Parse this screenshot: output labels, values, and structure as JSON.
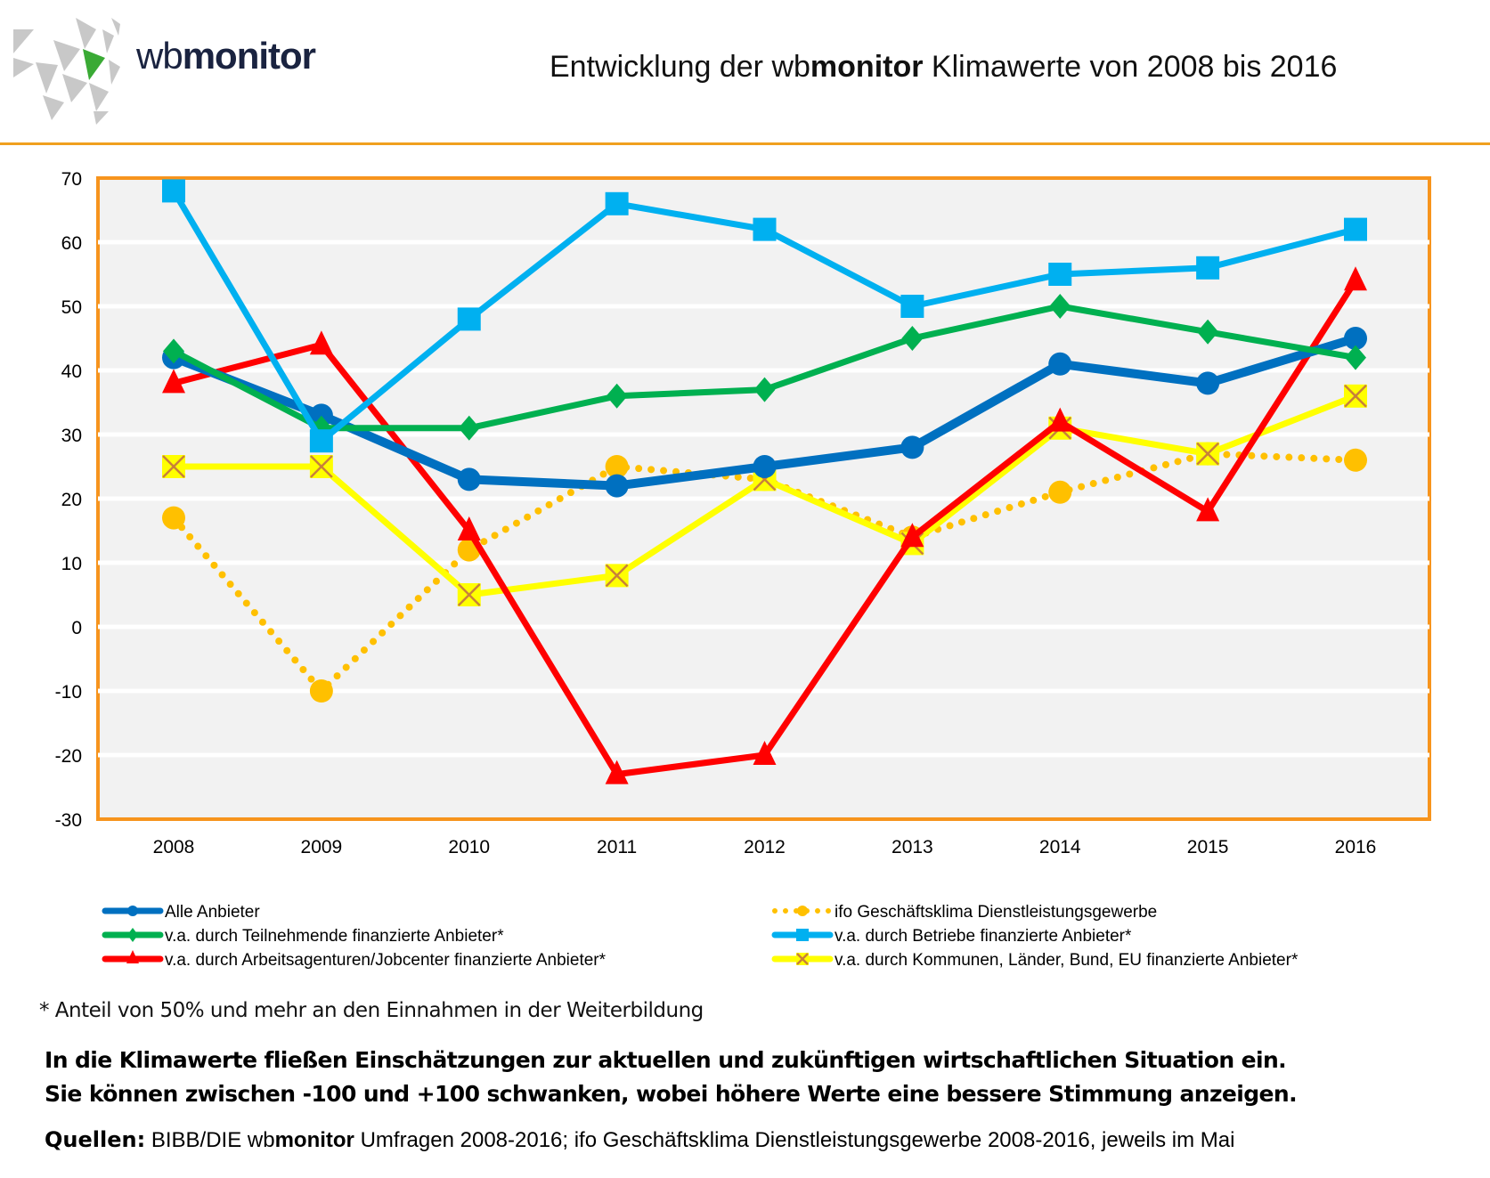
{
  "header": {
    "logo_light": "wb",
    "logo_bold": "monitor",
    "title_pre": "Entwicklung der wb",
    "title_bold": "monitor",
    "title_post": " Klimawerte von 2008 bis 2016"
  },
  "colors": {
    "accent_orange": "#f7941d",
    "rule": "#f0a01e",
    "plot_bg": "#f2f2f2",
    "grid": "#ffffff",
    "logo_green": "#3aaa35",
    "logo_gray": "#c8c8c8"
  },
  "chart_data": {
    "type": "line",
    "title": "Entwicklung der wbmonitor Klimawerte von 2008 bis 2016",
    "xlabel": "",
    "ylabel": "",
    "x": [
      "2008",
      "2009",
      "2010",
      "2011",
      "2012",
      "2013",
      "2014",
      "2015",
      "2016"
    ],
    "ylim": [
      -30,
      70
    ],
    "yticks": [
      70,
      60,
      50,
      40,
      30,
      20,
      10,
      0,
      -10,
      -20,
      -30
    ],
    "grid": true,
    "legend_position": "bottom",
    "series": [
      {
        "name": "Alle Anbieter",
        "color": "#0070c0",
        "marker": "circle",
        "style": "solid",
        "width": "thick",
        "values": [
          42,
          33,
          23,
          22,
          25,
          28,
          41,
          38,
          45
        ]
      },
      {
        "name": "v.a.  durch Teilnehmende finanzierte Anbieter*",
        "color": "#00b050",
        "marker": "diamond",
        "style": "solid",
        "width": "medium",
        "values": [
          43,
          31,
          31,
          36,
          37,
          45,
          50,
          46,
          42
        ]
      },
      {
        "name": "v.a. durch Arbeitsagenturen/Jobcenter finanzierte Anbieter*",
        "color": "#ff0000",
        "marker": "triangle",
        "style": "solid",
        "width": "medium",
        "values": [
          38,
          44,
          15,
          -23,
          -20,
          14,
          32,
          18,
          54
        ]
      },
      {
        "name": "ifo Geschäftsklima Dienstleistungsgewerbe",
        "color": "#ffc000",
        "marker": "circle",
        "style": "dotted",
        "width": "medium",
        "values": [
          17,
          -10,
          12,
          25,
          23,
          14,
          21,
          27,
          26
        ]
      },
      {
        "name": "v.a. durch Betriebe finanzierte Anbieter*",
        "color": "#00b0f0",
        "marker": "square",
        "style": "solid",
        "width": "medium",
        "values": [
          68,
          29,
          48,
          66,
          62,
          50,
          55,
          56,
          62
        ]
      },
      {
        "name": "v.a. durch Kommunen, Länder, Bund, EU finanzierte Anbieter*",
        "color": "#ffff00",
        "marker": "x-square",
        "style": "solid",
        "width": "medium",
        "values": [
          25,
          25,
          5,
          8,
          23,
          13,
          31,
          27,
          36
        ]
      }
    ]
  },
  "footer": {
    "note": "* Anteil von 50% und mehr an den Einnahmen in der Weiterbildung",
    "explain_line1": "In die Klimawerte fließen Einschätzungen zur aktuellen und zukünftigen wirtschaftlichen Situation ein.",
    "explain_line2": "Sie können zwischen -100 und +100 schwanken, wobei höhere Werte eine bessere Stimmung anzeigen.",
    "sources_label": "Quellen:",
    "sources_pre": " BIBB/DIE wb",
    "sources_bold": "monitor",
    "sources_post": " Umfragen 2008-2016; ifo Geschäftsklima Dienstleistungsgewerbe 2008-2016, jeweils im Mai"
  }
}
